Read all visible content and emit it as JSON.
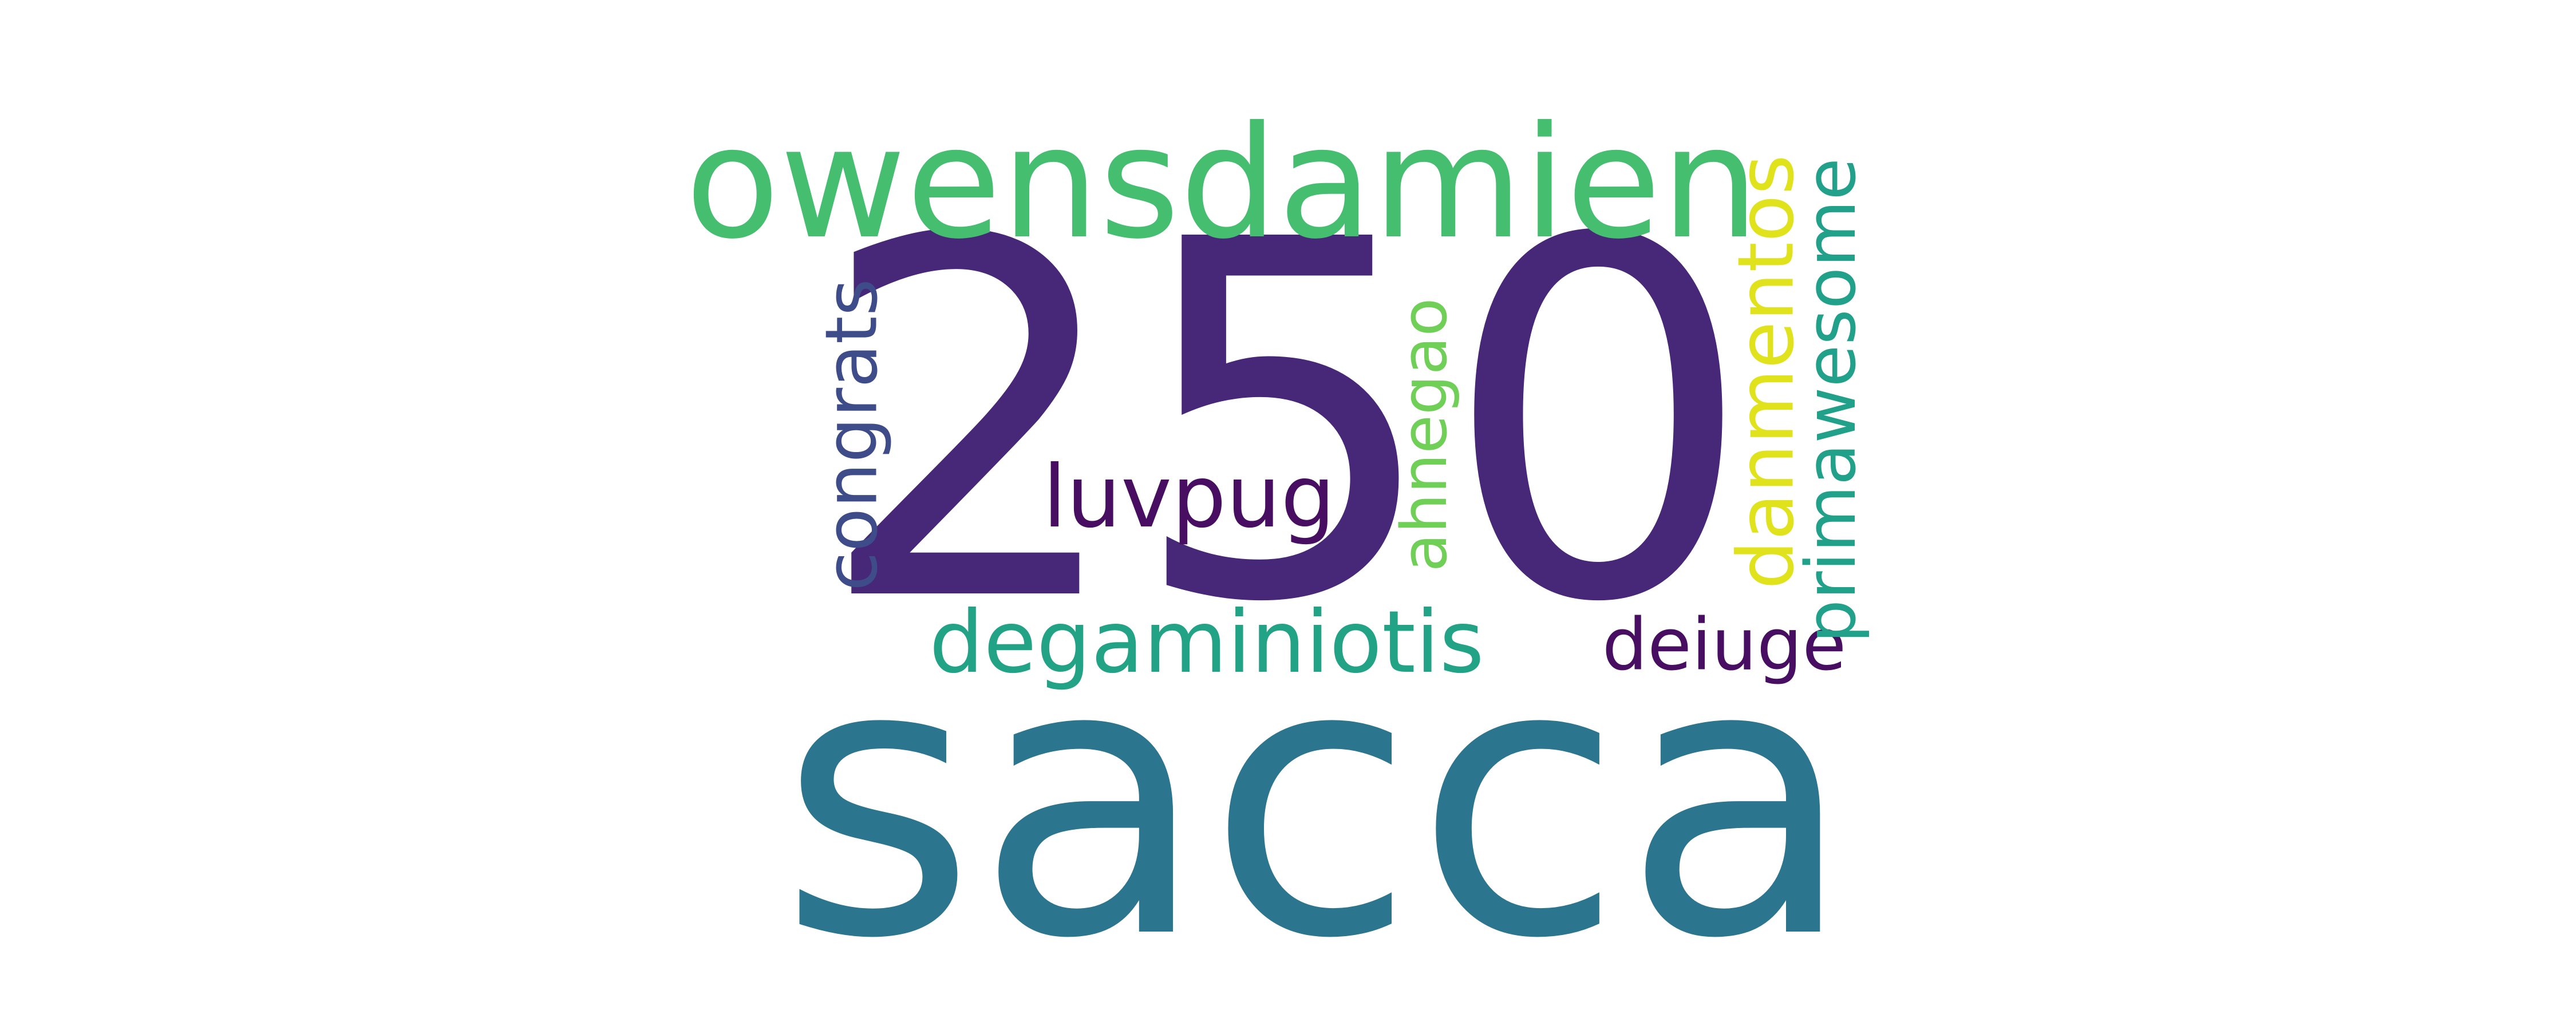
{
  "wordcloud": {
    "background": "#ffffff",
    "words": [
      {
        "text": "250",
        "color": "#472777",
        "orientation": "horizontal"
      },
      {
        "text": "sacca",
        "color": "#2c758e",
        "orientation": "horizontal"
      },
      {
        "text": "owensdamien",
        "color": "#45be70",
        "orientation": "horizontal"
      },
      {
        "text": "degaminiotis",
        "color": "#22a386",
        "orientation": "horizontal"
      },
      {
        "text": "deiuge",
        "color": "#470e61",
        "orientation": "horizontal"
      },
      {
        "text": "luvpug",
        "color": "#470e61",
        "orientation": "horizontal"
      },
      {
        "text": "congrats",
        "color": "#3e4c8a",
        "orientation": "vertical"
      },
      {
        "text": "ahnegao",
        "color": "#70cf57",
        "orientation": "vertical"
      },
      {
        "text": "danmentos",
        "color": "#e0e31c",
        "orientation": "vertical"
      },
      {
        "text": "primawesome",
        "color": "#21a08a",
        "orientation": "vertical"
      }
    ]
  }
}
